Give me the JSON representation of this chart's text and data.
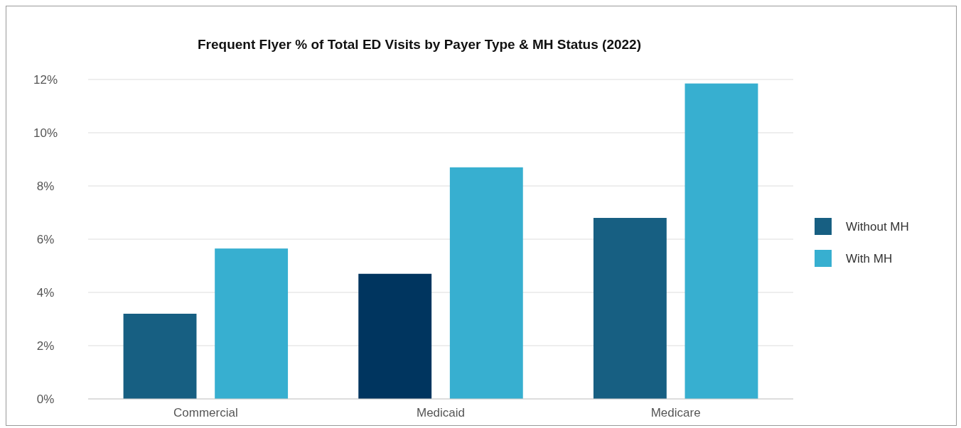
{
  "chart_data": {
    "type": "bar",
    "title": "Frequent Flyer % of Total ED Visits by Payer Type & MH Status (2022)",
    "categories": [
      "Commercial",
      "Medicaid",
      "Medicare"
    ],
    "series": [
      {
        "name": "Without MH",
        "color": "#175f82",
        "colors": [
          "#175f82",
          "#00355f",
          "#175f82"
        ],
        "values": [
          3.2,
          4.7,
          6.8
        ]
      },
      {
        "name": "With MH",
        "color": "#37afd0",
        "values": [
          5.65,
          8.7,
          11.85
        ]
      }
    ],
    "ylim": [
      0,
      12
    ],
    "yticks": [
      {
        "value": 0,
        "label": "0%"
      },
      {
        "value": 2,
        "label": "2%"
      },
      {
        "value": 4,
        "label": "4%"
      },
      {
        "value": 6,
        "label": "6%"
      },
      {
        "value": 8,
        "label": "8%"
      },
      {
        "value": 10,
        "label": "10%"
      },
      {
        "value": 12,
        "label": "12%"
      }
    ],
    "grid": "y",
    "legend": "right"
  }
}
